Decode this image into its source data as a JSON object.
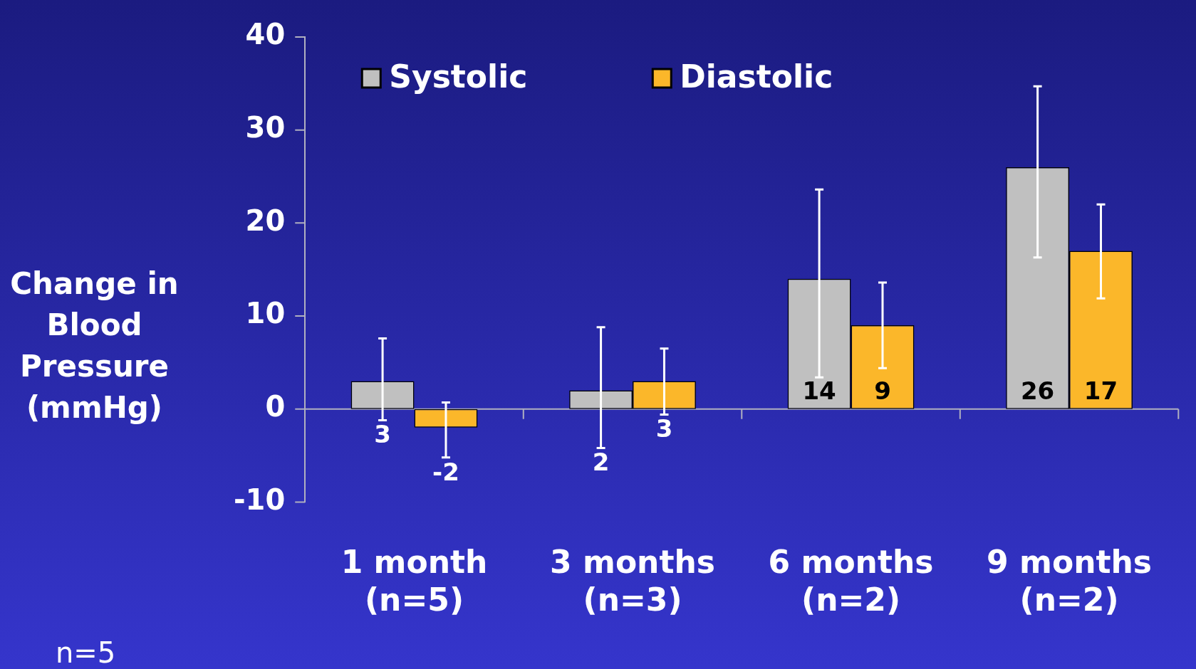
{
  "chart_data": {
    "type": "bar",
    "ylabel": "Change in Blood Pressure (mmHg)",
    "categories": [
      "1 month\n(n=5)",
      "3 months\n(n=3)",
      "6 months\n(n=2)",
      "9 months\n(n=2)"
    ],
    "series": [
      {
        "name": "Systolic",
        "color": "#c0c0c0",
        "values": [
          3,
          2,
          14,
          26
        ],
        "errors": [
          [
            -1.2,
            7.6
          ],
          [
            -4.2,
            8.8
          ],
          [
            3.4,
            23.6
          ],
          [
            16.3,
            34.7
          ]
        ]
      },
      {
        "name": "Diastolic",
        "color": "#fbb72a",
        "values": [
          -2,
          3,
          9,
          17
        ],
        "errors": [
          [
            -5.2,
            0.7
          ],
          [
            -0.6,
            6.5
          ],
          [
            4.4,
            13.6
          ],
          [
            11.9,
            22.0
          ]
        ]
      }
    ],
    "ylim": [
      -10,
      40
    ],
    "yticks": [
      -10,
      0,
      10,
      20,
      30,
      40
    ],
    "grid": false,
    "legend": "top",
    "data_labels": true,
    "ref_lines": [
      {
        "axis": "y",
        "value": 0,
        "color": "#b0b0c0"
      }
    ],
    "annotations": [
      "n=5"
    ]
  }
}
